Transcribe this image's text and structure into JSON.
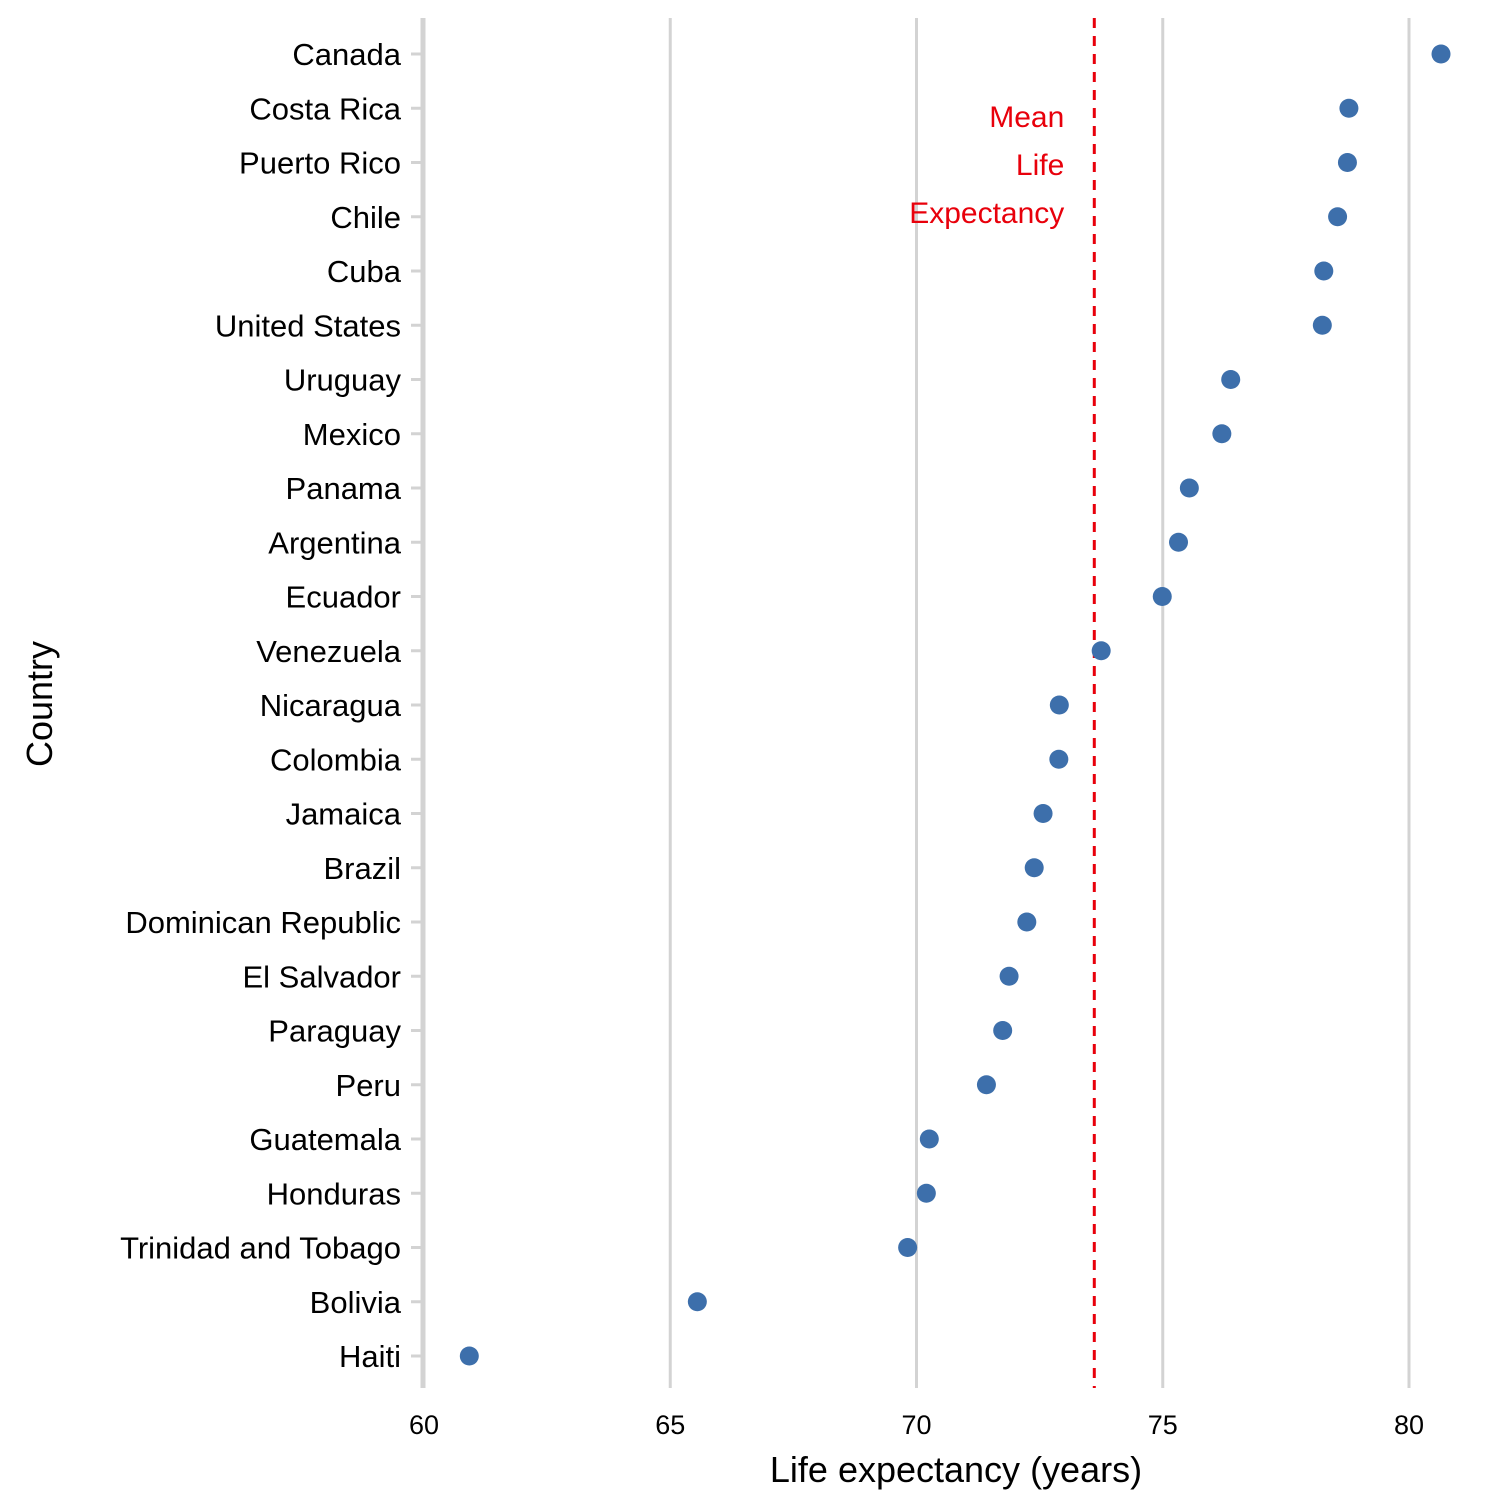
{
  "chart_data": {
    "type": "scatter",
    "orientation": "horizontal dot plot",
    "title": "",
    "xlabel": "Life expectancy (years)",
    "ylabel": "Country",
    "xlim": [
      60,
      80.9
    ],
    "xticks": [
      60,
      65,
      70,
      75,
      80
    ],
    "x_tick_labels": [
      "60",
      "65",
      "70",
      "75",
      "80"
    ],
    "grid": "vertical major gridlines only",
    "point_color": "#3D6FAB",
    "categories": [
      "Canada",
      "Costa Rica",
      "Puerto Rico",
      "Chile",
      "Cuba",
      "United States",
      "Uruguay",
      "Mexico",
      "Panama",
      "Argentina",
      "Ecuador",
      "Venezuela",
      "Nicaragua",
      "Colombia",
      "Jamaica",
      "Brazil",
      "Dominican Republic",
      "El Salvador",
      "Paraguay",
      "Peru",
      "Guatemala",
      "Honduras",
      "Trinidad and Tobago",
      "Bolivia",
      "Haiti"
    ],
    "values": [
      80.65,
      78.78,
      78.75,
      78.55,
      78.27,
      78.24,
      76.38,
      76.2,
      75.54,
      75.32,
      74.99,
      73.75,
      72.9,
      72.89,
      72.57,
      72.39,
      72.24,
      71.88,
      71.75,
      71.42,
      70.26,
      70.2,
      69.82,
      65.55,
      60.92
    ],
    "reference_line": {
      "value": 73.61,
      "style": "dashed",
      "color": "#E8000B",
      "label_lines": [
        "Mean",
        "Life",
        "Expectancy"
      ]
    }
  }
}
